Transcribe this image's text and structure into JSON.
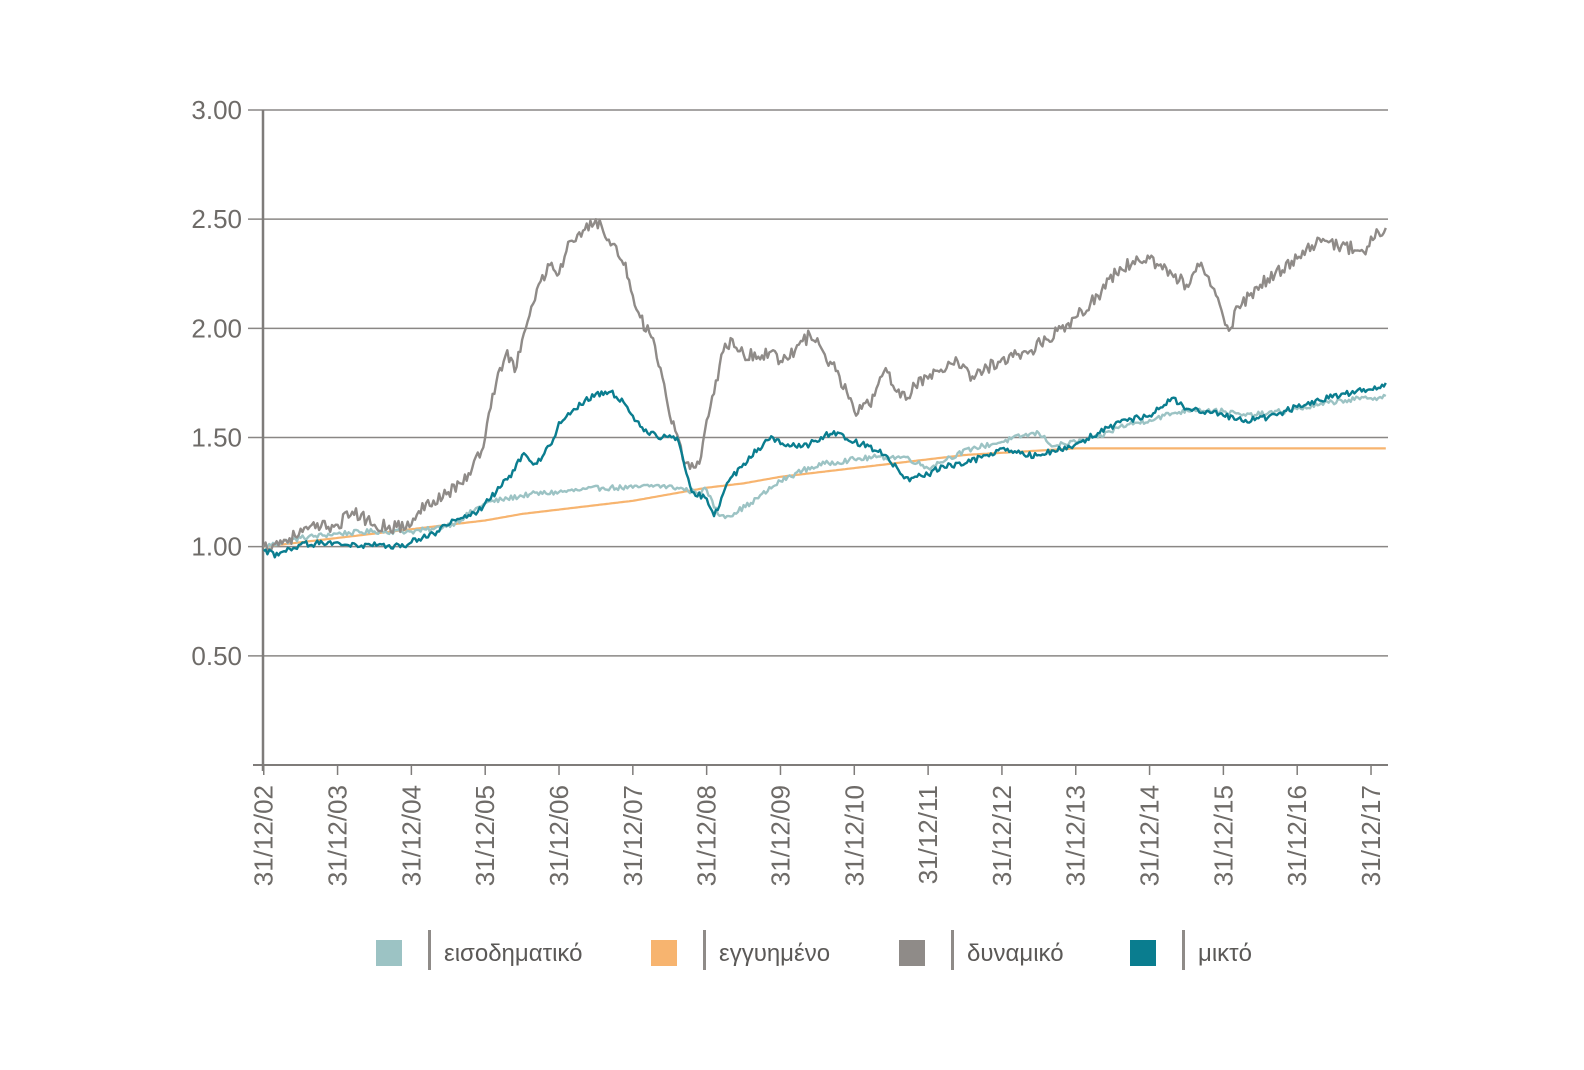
{
  "chart_data": {
    "type": "line",
    "title": "",
    "xlabel": "",
    "ylabel": "",
    "ylim": [
      0,
      3.0
    ],
    "xlim": [
      2002.99,
      2018.23
    ],
    "y_ticks": [
      {
        "value": 3.0,
        "label": "3.00"
      },
      {
        "value": 2.5,
        "label": "2.50"
      },
      {
        "value": 2.0,
        "label": "2.00"
      },
      {
        "value": 1.5,
        "label": "1.50"
      },
      {
        "value": 1.0,
        "label": "1.00"
      },
      {
        "value": 0.5,
        "label": "0.50"
      }
    ],
    "x_ticks": [
      {
        "value": 2003,
        "label": "31/12/02"
      },
      {
        "value": 2004,
        "label": "31/12/03"
      },
      {
        "value": 2005,
        "label": "31/12/04"
      },
      {
        "value": 2006,
        "label": "31/12/05"
      },
      {
        "value": 2007,
        "label": "31/12/06"
      },
      {
        "value": 2008,
        "label": "31/12/07"
      },
      {
        "value": 2009,
        "label": "31/12/08"
      },
      {
        "value": 2010,
        "label": "31/12/09"
      },
      {
        "value": 2011,
        "label": "31/12/10"
      },
      {
        "value": 2012,
        "label": "31/12/11"
      },
      {
        "value": 2013,
        "label": "31/12/12"
      },
      {
        "value": 2014,
        "label": "31/12/13"
      },
      {
        "value": 2015,
        "label": "31/12/14"
      },
      {
        "value": 2016,
        "label": "31/12/15"
      },
      {
        "value": 2017,
        "label": "31/12/16"
      },
      {
        "value": 2018,
        "label": "31/12/17"
      }
    ],
    "grid": "horizontal",
    "legend_position": "bottom",
    "series": [
      {
        "name": "εισοδηματικό",
        "color": "#9cc3c4",
        "x": [
          2003.0,
          2003.5,
          2004.0,
          2004.5,
          2005.0,
          2005.3,
          2005.6,
          2006.0,
          2006.3,
          2006.6,
          2007.0,
          2007.3,
          2007.6,
          2008.0,
          2008.3,
          2008.6,
          2008.85,
          2009.0,
          2009.15,
          2009.3,
          2009.6,
          2010.0,
          2010.3,
          2010.6,
          2011.0,
          2011.3,
          2011.7,
          2012.0,
          2012.3,
          2012.6,
          2013.0,
          2013.3,
          2013.5,
          2013.7,
          2014.0,
          2014.3,
          2014.6,
          2015.0,
          2015.3,
          2015.6,
          2016.0,
          2016.3,
          2016.6,
          2017.0,
          2017.3,
          2017.6,
          2018.0,
          2018.2
        ],
        "y": [
          1.0,
          1.04,
          1.06,
          1.07,
          1.07,
          1.08,
          1.11,
          1.2,
          1.22,
          1.24,
          1.25,
          1.26,
          1.27,
          1.27,
          1.28,
          1.27,
          1.25,
          1.26,
          1.15,
          1.14,
          1.2,
          1.3,
          1.35,
          1.38,
          1.4,
          1.41,
          1.41,
          1.36,
          1.41,
          1.45,
          1.48,
          1.51,
          1.52,
          1.46,
          1.48,
          1.5,
          1.55,
          1.58,
          1.61,
          1.63,
          1.62,
          1.6,
          1.61,
          1.63,
          1.65,
          1.67,
          1.68,
          1.69
        ]
      },
      {
        "name": "εγγυημένο",
        "color": "#f7b46f",
        "x": [
          2003.0,
          2003.5,
          2004.0,
          2004.5,
          2005.0,
          2005.5,
          2006.0,
          2006.5,
          2007.0,
          2007.5,
          2008.0,
          2008.5,
          2009.0,
          2009.5,
          2010.0,
          2010.5,
          2011.0,
          2011.5,
          2012.0,
          2012.5,
          2013.0,
          2013.5,
          2014.0,
          2014.5,
          2015.0,
          2016.0,
          2017.0,
          2018.2
        ],
        "y": [
          1.0,
          1.02,
          1.04,
          1.06,
          1.08,
          1.1,
          1.12,
          1.15,
          1.17,
          1.19,
          1.21,
          1.24,
          1.27,
          1.29,
          1.32,
          1.34,
          1.36,
          1.38,
          1.4,
          1.42,
          1.43,
          1.44,
          1.45,
          1.45,
          1.45,
          1.45,
          1.45,
          1.45
        ]
      },
      {
        "name": "δυναμικό",
        "color": "#8f8b88",
        "x": [
          2003.0,
          2003.3,
          2003.6,
          2004.0,
          2004.2,
          2004.5,
          2004.8,
          2005.0,
          2005.2,
          2005.5,
          2005.8,
          2006.0,
          2006.1,
          2006.3,
          2006.4,
          2006.55,
          2006.7,
          2006.9,
          2007.0,
          2007.15,
          2007.3,
          2007.5,
          2007.7,
          2007.9,
          2008.0,
          2008.1,
          2008.3,
          2008.5,
          2008.7,
          2008.9,
          2009.0,
          2009.1,
          2009.2,
          2009.35,
          2009.5,
          2009.7,
          2009.9,
          2010.0,
          2010.2,
          2010.4,
          2010.6,
          2010.8,
          2011.0,
          2011.2,
          2011.4,
          2011.6,
          2011.75,
          2011.8,
          2012.0,
          2012.2,
          2012.4,
          2012.6,
          2012.8,
          2013.0,
          2013.2,
          2013.4,
          2013.6,
          2013.8,
          2014.0,
          2014.3,
          2014.6,
          2015.0,
          2015.3,
          2015.5,
          2015.7,
          2016.0,
          2016.1,
          2016.2,
          2016.35,
          2016.5,
          2016.7,
          2017.0,
          2017.2,
          2017.4,
          2017.6,
          2017.9,
          2018.0,
          2018.2
        ],
        "y": [
          1.0,
          1.03,
          1.08,
          1.1,
          1.16,
          1.1,
          1.09,
          1.1,
          1.2,
          1.25,
          1.33,
          1.5,
          1.7,
          1.9,
          1.8,
          2.0,
          2.18,
          2.3,
          2.25,
          2.4,
          2.42,
          2.5,
          2.38,
          2.3,
          2.15,
          2.05,
          1.92,
          1.6,
          1.38,
          1.38,
          1.58,
          1.7,
          1.88,
          1.95,
          1.88,
          1.87,
          1.9,
          1.85,
          1.9,
          1.97,
          1.88,
          1.78,
          1.62,
          1.65,
          1.8,
          1.72,
          1.68,
          1.75,
          1.77,
          1.8,
          1.85,
          1.78,
          1.82,
          1.86,
          1.88,
          1.9,
          1.95,
          2.0,
          2.05,
          2.15,
          2.28,
          2.32,
          2.25,
          2.2,
          2.3,
          2.05,
          2.0,
          2.1,
          2.15,
          2.2,
          2.25,
          2.32,
          2.38,
          2.4,
          2.38,
          2.35,
          2.42,
          2.46
        ]
      },
      {
        "name": "μικτό",
        "color": "#0a7d8f",
        "x": [
          2003.0,
          2003.2,
          2003.5,
          2004.0,
          2004.3,
          2004.6,
          2004.9,
          2005.0,
          2005.3,
          2005.6,
          2005.9,
          2006.0,
          2006.2,
          2006.4,
          2006.5,
          2006.7,
          2006.9,
          2007.0,
          2007.2,
          2007.5,
          2007.7,
          2007.9,
          2008.0,
          2008.2,
          2008.4,
          2008.6,
          2008.8,
          2009.0,
          2009.1,
          2009.3,
          2009.5,
          2009.7,
          2009.9,
          2010.0,
          2010.2,
          2010.4,
          2010.6,
          2010.8,
          2011.0,
          2011.2,
          2011.4,
          2011.6,
          2011.75,
          2011.85,
          2012.0,
          2012.2,
          2012.5,
          2012.8,
          2013.0,
          2013.3,
          2013.5,
          2013.7,
          2014.0,
          2014.3,
          2014.6,
          2015.0,
          2015.3,
          2015.5,
          2015.8,
          2016.0,
          2016.3,
          2016.6,
          2017.0,
          2017.3,
          2017.6,
          2018.0,
          2018.2
        ],
        "y": [
          0.98,
          0.96,
          1.01,
          1.02,
          1.0,
          1.01,
          1.0,
          1.02,
          1.06,
          1.12,
          1.16,
          1.2,
          1.27,
          1.35,
          1.42,
          1.38,
          1.47,
          1.57,
          1.63,
          1.7,
          1.71,
          1.65,
          1.6,
          1.52,
          1.5,
          1.5,
          1.25,
          1.22,
          1.14,
          1.3,
          1.38,
          1.45,
          1.5,
          1.47,
          1.46,
          1.47,
          1.51,
          1.52,
          1.48,
          1.46,
          1.42,
          1.35,
          1.3,
          1.32,
          1.33,
          1.37,
          1.38,
          1.42,
          1.45,
          1.42,
          1.42,
          1.44,
          1.47,
          1.52,
          1.57,
          1.6,
          1.68,
          1.63,
          1.62,
          1.6,
          1.58,
          1.59,
          1.64,
          1.67,
          1.7,
          1.72,
          1.75
        ]
      }
    ]
  }
}
